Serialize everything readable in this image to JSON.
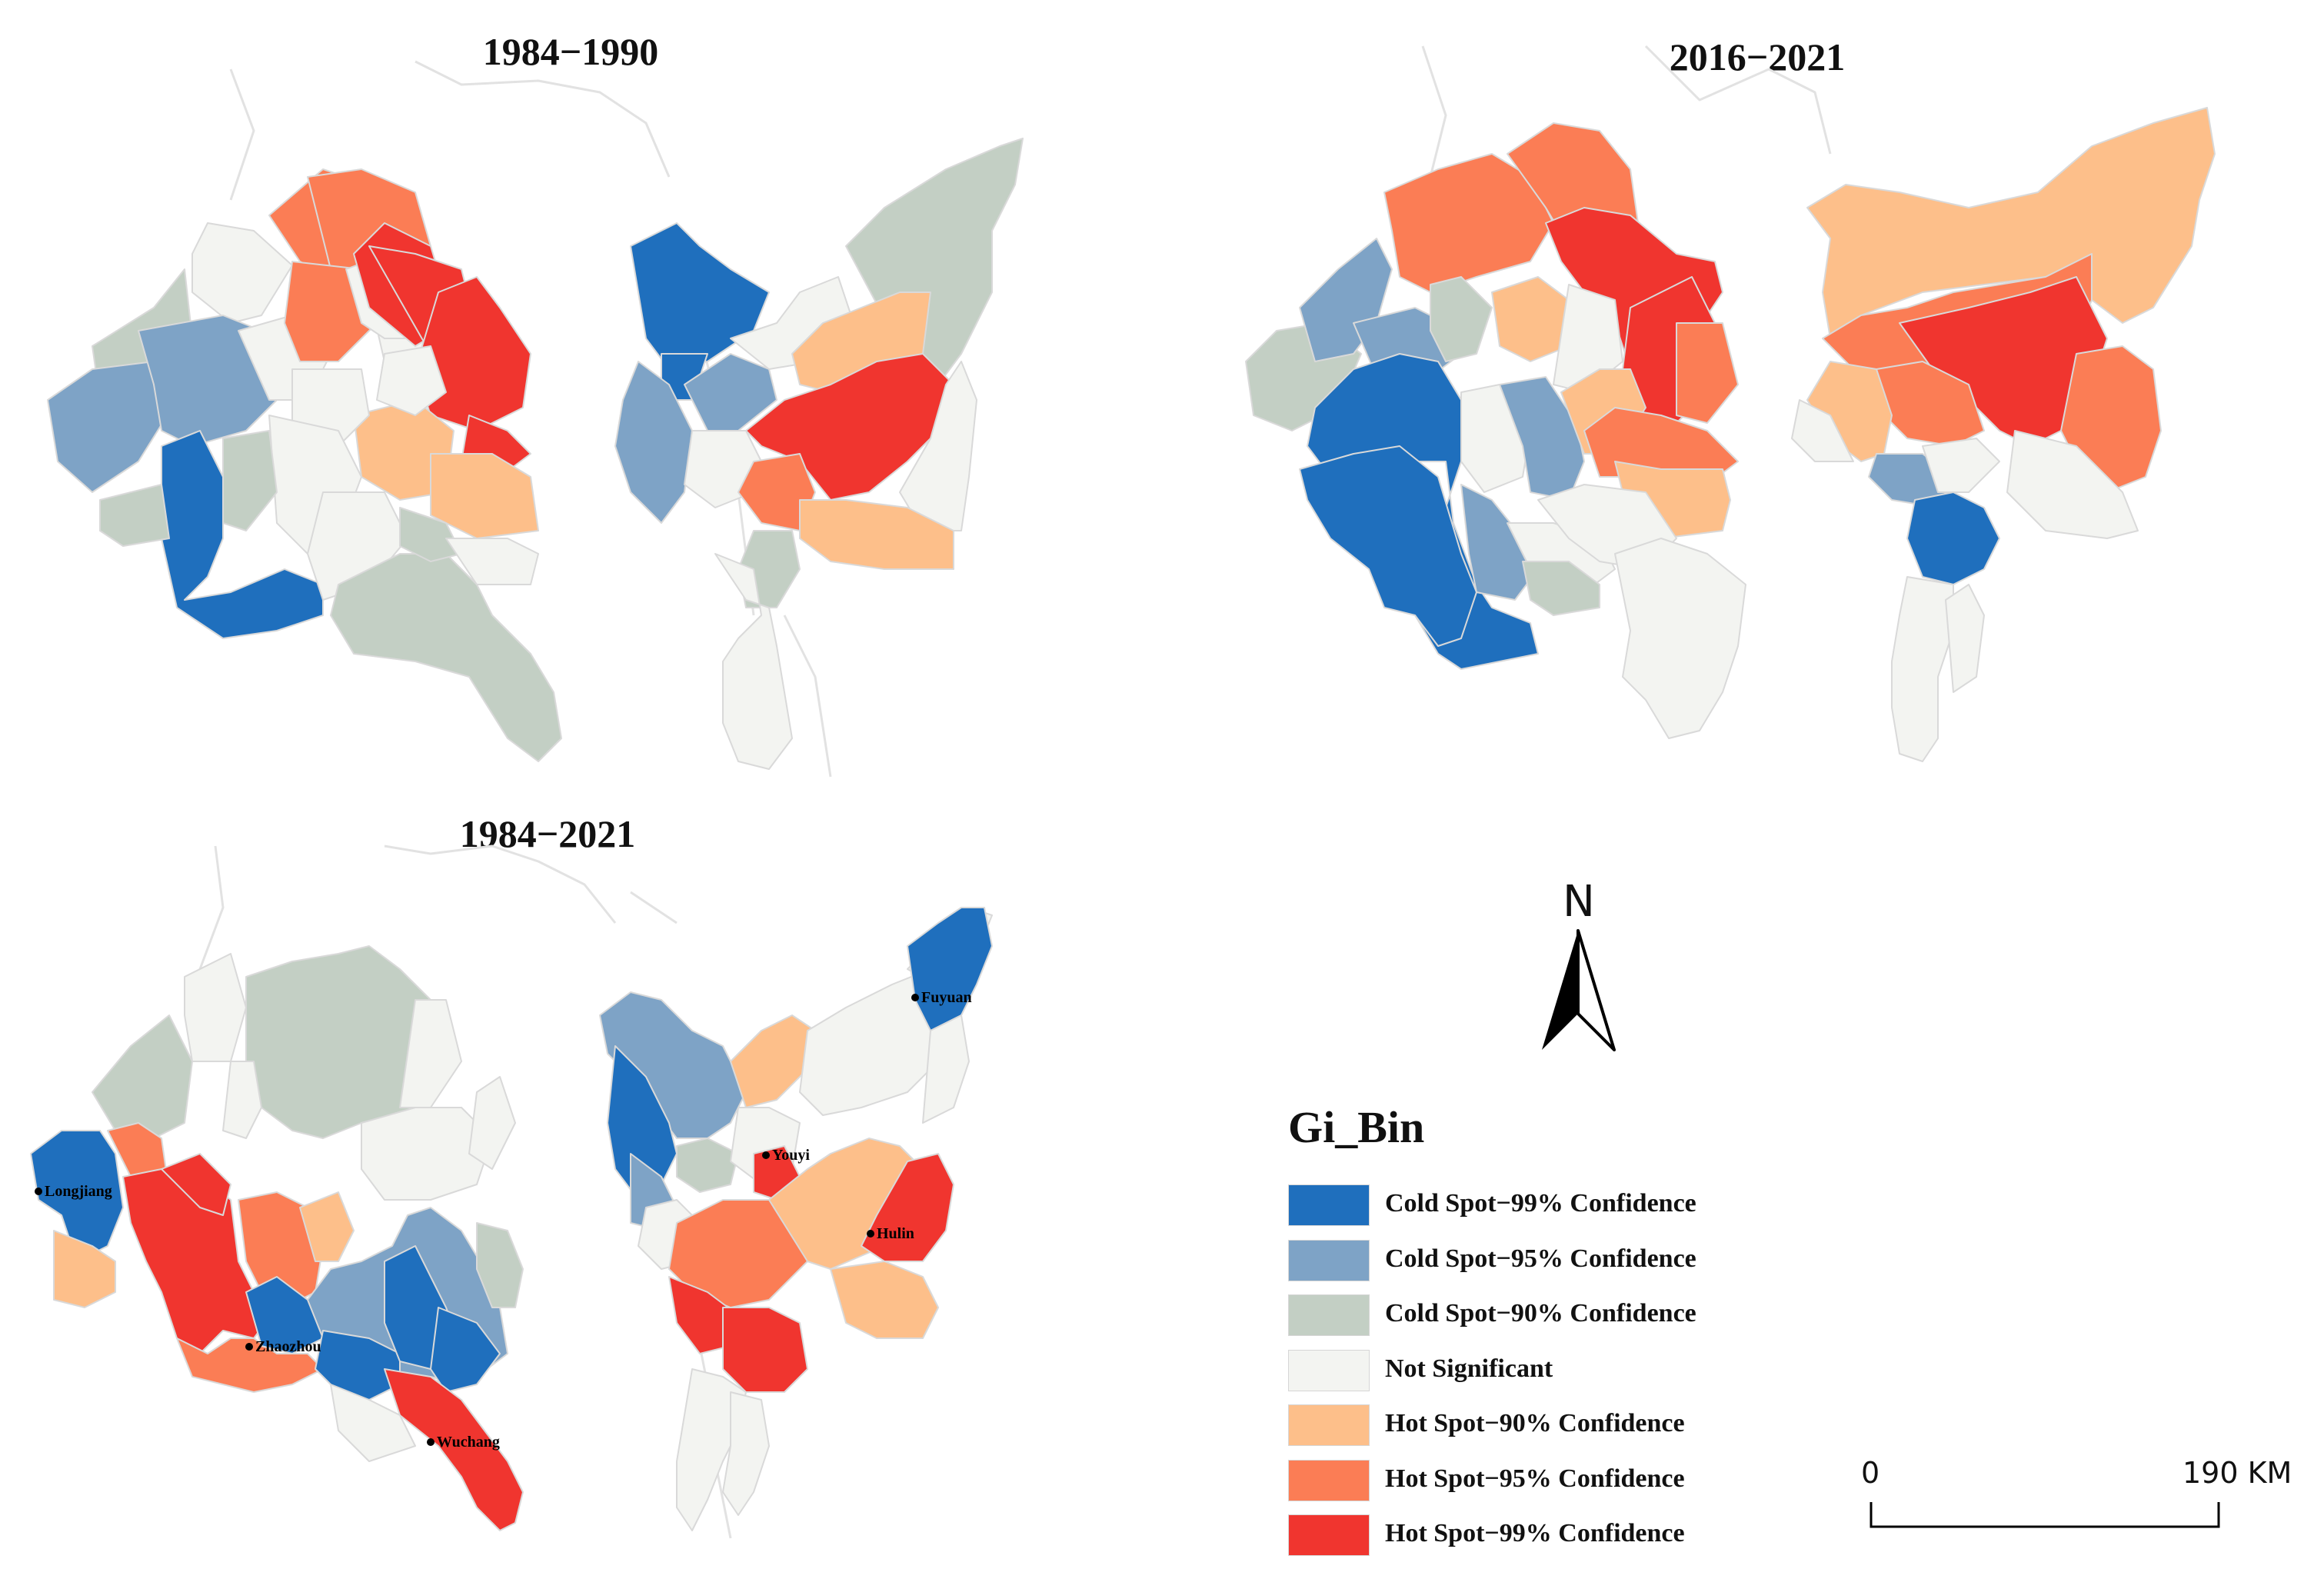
{
  "maps": [
    {
      "id": "map-1984-1990",
      "title": "1984−1990"
    },
    {
      "id": "map-2016-2021",
      "title": "2016−2021"
    },
    {
      "id": "map-1984-2021",
      "title": "1984−2021",
      "cities": [
        "Longjiang",
        "Zhaozhou",
        "Wuchang",
        "Fuyuan",
        "Youyi",
        "Hulin"
      ]
    }
  ],
  "legend": {
    "title": "Gi_Bin",
    "items": [
      {
        "label": "Cold Spot−99% Confidence",
        "color": "#1f6fbd"
      },
      {
        "label": "Cold Spot−95% Confidence",
        "color": "#7ea3c6"
      },
      {
        "label": "Cold Spot−90% Confidence",
        "color": "#c3cfc4"
      },
      {
        "label": "Not Significant",
        "color": "#f3f4f1"
      },
      {
        "label": "Hot Spot−90% Confidence",
        "color": "#fdbf8a"
      },
      {
        "label": "Hot Spot−95% Confidence",
        "color": "#fb7d55"
      },
      {
        "label": "Hot Spot−99% Confidence",
        "color": "#f0352f"
      }
    ]
  },
  "north_arrow": {
    "label": "N"
  },
  "scale_bar": {
    "start_label": "0",
    "end_label": "190 KM"
  }
}
